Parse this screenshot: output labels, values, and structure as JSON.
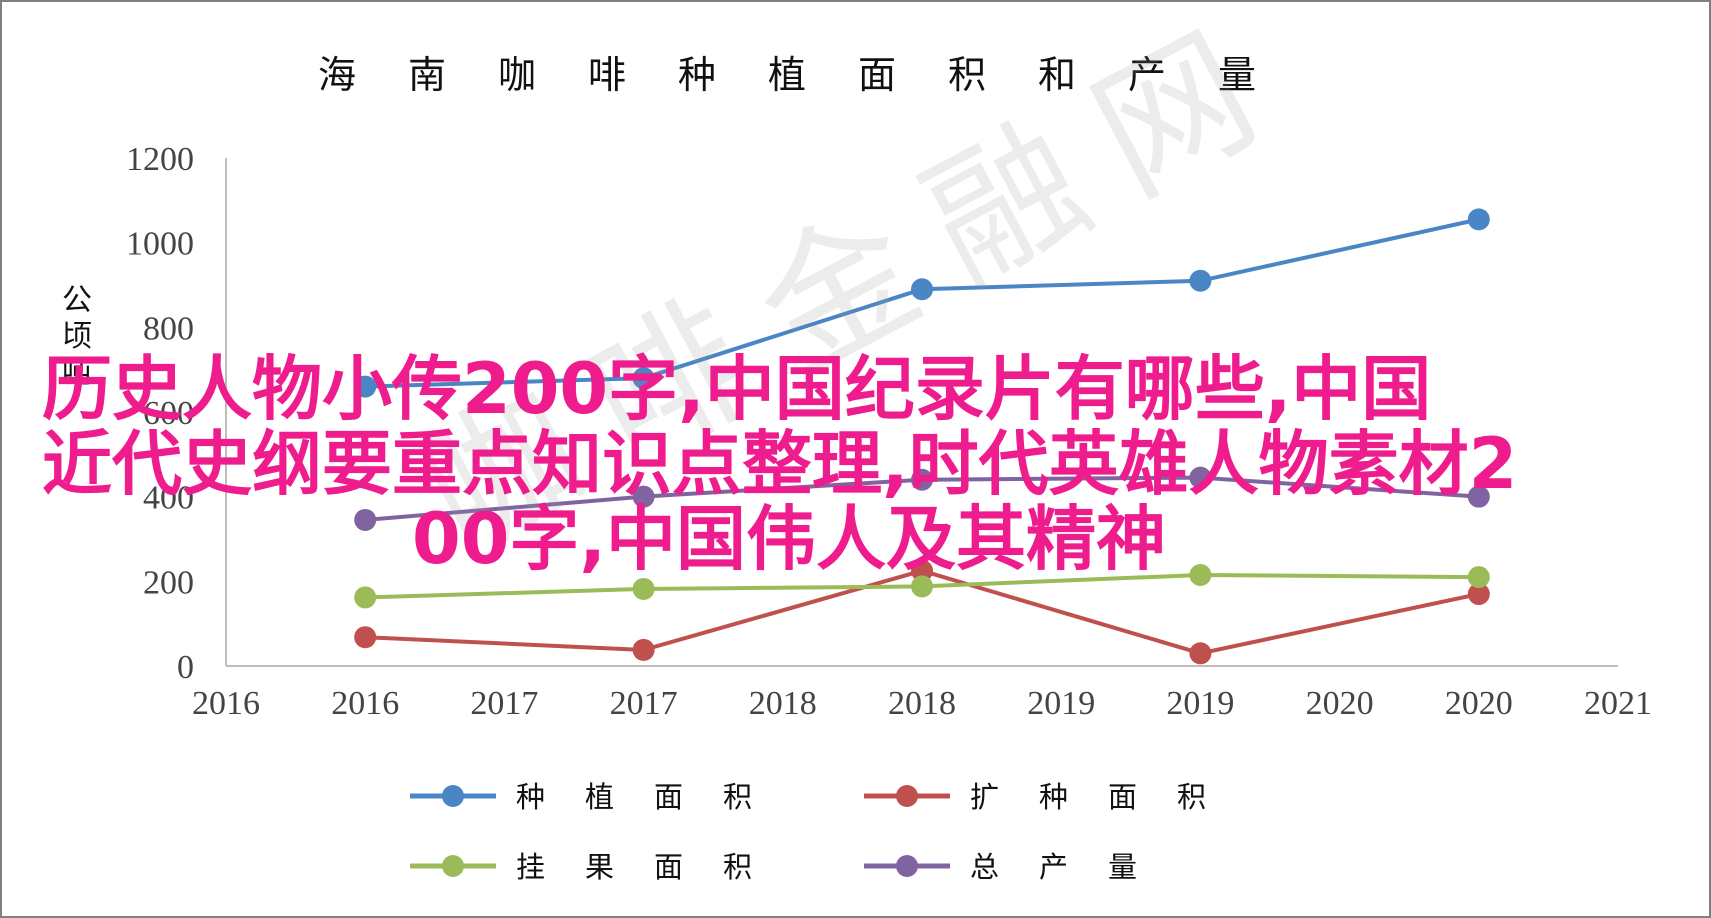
{
  "chart_data": {
    "type": "line",
    "title": "海南咖啡种植面积和产量",
    "ylabel": "公顷吨",
    "xlabel": "",
    "x_ticks": [
      "2016",
      "2016",
      "2017",
      "2017",
      "2018",
      "2018",
      "2019",
      "2019",
      "2020",
      "2020",
      "2021"
    ],
    "y_ticks": [
      "0",
      "200",
      "400",
      "600",
      "800",
      "1000",
      "1200"
    ],
    "ylim": [
      0,
      1200
    ],
    "x": [
      "2016",
      "2017",
      "2018",
      "2019",
      "2020"
    ],
    "series": [
      {
        "name": "种植面积",
        "color": "#4a86c5",
        "values": [
          660,
          680,
          890,
          910,
          1055
        ]
      },
      {
        "name": "扩种面积",
        "color": "#c0504d",
        "values": [
          68,
          38,
          225,
          30,
          170
        ]
      },
      {
        "name": "挂果面积",
        "color": "#9bbb59",
        "values": [
          162,
          182,
          188,
          215,
          210
        ]
      },
      {
        "name": "总产量",
        "color": "#8064a2",
        "values": [
          345,
          400,
          440,
          445,
          400
        ]
      }
    ],
    "grid": false,
    "legend_position": "bottom"
  },
  "overlay": {
    "line1": "历史人物小传200字,中国纪录片有哪些,中国",
    "line2": "近代史纲要重点知识点整理,时代英雄人物素材2",
    "line3": "00字,中国伟人及其精神"
  },
  "watermark": "咖啡金融网"
}
